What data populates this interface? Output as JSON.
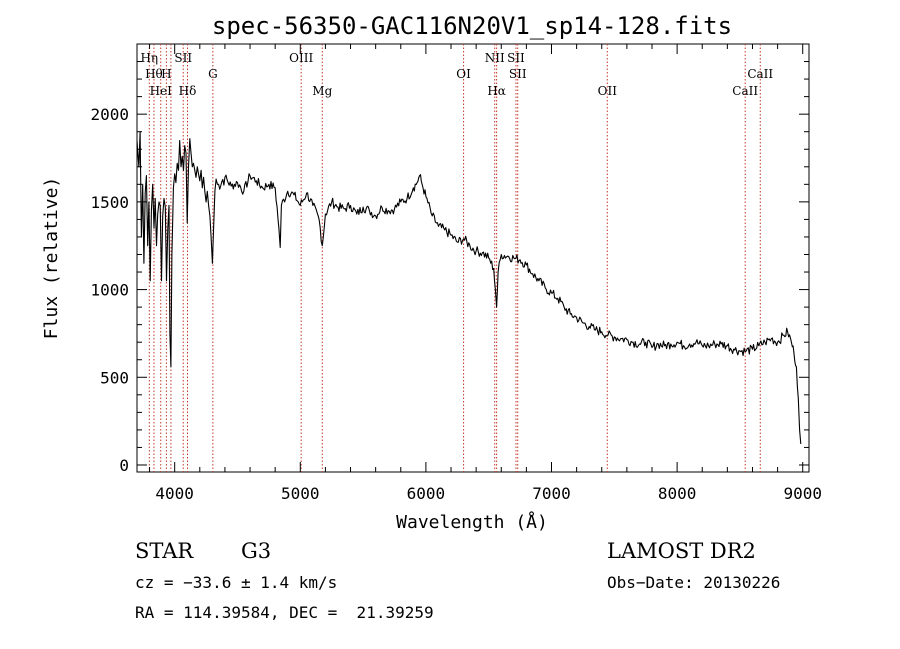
{
  "chart_data": {
    "type": "line",
    "title": "spec-56350-GAC116N20V1_sp14-128.fits",
    "xlabel": "Wavelength (Å)",
    "ylabel": "Flux (relative)",
    "xlim": [
      3700,
      9050
    ],
    "ylim": [
      -40,
      2400
    ],
    "x_ticks": [
      4000,
      5000,
      6000,
      7000,
      8000,
      9000
    ],
    "y_ticks": [
      0,
      500,
      1000,
      1500,
      2000
    ],
    "grid": false,
    "series": [
      {
        "points": [
          [
            3700,
            1850
          ],
          [
            3715,
            1700
          ],
          [
            3725,
            1900
          ],
          [
            3735,
            1300
          ],
          [
            3745,
            1600
          ],
          [
            3755,
            1150
          ],
          [
            3765,
            1550
          ],
          [
            3775,
            1650
          ],
          [
            3785,
            1250
          ],
          [
            3795,
            1500
          ],
          [
            3805,
            1050
          ],
          [
            3815,
            1450
          ],
          [
            3825,
            1600
          ],
          [
            3835,
            1350
          ],
          [
            3845,
            1520
          ],
          [
            3855,
            1250
          ],
          [
            3865,
            1430
          ],
          [
            3875,
            1500
          ],
          [
            3885,
            1480
          ],
          [
            3895,
            1050
          ],
          [
            3905,
            1420
          ],
          [
            3915,
            1520
          ],
          [
            3925,
            1470
          ],
          [
            3935,
            1050
          ],
          [
            3945,
            1350
          ],
          [
            3955,
            1480
          ],
          [
            3962,
            750
          ],
          [
            3970,
            560
          ],
          [
            3978,
            1200
          ],
          [
            3990,
            1580
          ],
          [
            4000,
            1660
          ],
          [
            4010,
            1610
          ],
          [
            4020,
            1720
          ],
          [
            4030,
            1680
          ],
          [
            4040,
            1850
          ],
          [
            4050,
            1700
          ],
          [
            4060,
            1760
          ],
          [
            4070,
            1680
          ],
          [
            4080,
            1820
          ],
          [
            4090,
            1780
          ],
          [
            4100,
            1380
          ],
          [
            4110,
            1700
          ],
          [
            4120,
            1860
          ],
          [
            4130,
            1780
          ],
          [
            4140,
            1700
          ],
          [
            4150,
            1720
          ],
          [
            4160,
            1680
          ],
          [
            4170,
            1640
          ],
          [
            4180,
            1700
          ],
          [
            4190,
            1660
          ],
          [
            4200,
            1620
          ],
          [
            4210,
            1680
          ],
          [
            4220,
            1580
          ],
          [
            4230,
            1640
          ],
          [
            4240,
            1560
          ],
          [
            4250,
            1500
          ],
          [
            4260,
            1560
          ],
          [
            4270,
            1480
          ],
          [
            4280,
            1420
          ],
          [
            4290,
            1300
          ],
          [
            4300,
            1150
          ],
          [
            4310,
            1350
          ],
          [
            4320,
            1560
          ],
          [
            4330,
            1630
          ],
          [
            4340,
            1600
          ],
          [
            4350,
            1600
          ],
          [
            4400,
            1640
          ],
          [
            4450,
            1590
          ],
          [
            4500,
            1610
          ],
          [
            4550,
            1560
          ],
          [
            4600,
            1650
          ],
          [
            4650,
            1620
          ],
          [
            4700,
            1580
          ],
          [
            4750,
            1600
          ],
          [
            4800,
            1580
          ],
          [
            4830,
            1350
          ],
          [
            4840,
            1240
          ],
          [
            4850,
            1480
          ],
          [
            4900,
            1560
          ],
          [
            4950,
            1540
          ],
          [
            5000,
            1480
          ],
          [
            5050,
            1550
          ],
          [
            5100,
            1480
          ],
          [
            5150,
            1400
          ],
          [
            5175,
            1250
          ],
          [
            5200,
            1430
          ],
          [
            5250,
            1500
          ],
          [
            5300,
            1470
          ],
          [
            5350,
            1460
          ],
          [
            5400,
            1480
          ],
          [
            5450,
            1430
          ],
          [
            5500,
            1470
          ],
          [
            5550,
            1450
          ],
          [
            5600,
            1420
          ],
          [
            5650,
            1470
          ],
          [
            5700,
            1450
          ],
          [
            5750,
            1460
          ],
          [
            5800,
            1500
          ],
          [
            5850,
            1520
          ],
          [
            5900,
            1580
          ],
          [
            5930,
            1610
          ],
          [
            5950,
            1650
          ],
          [
            5970,
            1600
          ],
          [
            6000,
            1530
          ],
          [
            6050,
            1420
          ],
          [
            6100,
            1360
          ],
          [
            6150,
            1340
          ],
          [
            6200,
            1310
          ],
          [
            6250,
            1270
          ],
          [
            6300,
            1290
          ],
          [
            6350,
            1250
          ],
          [
            6400,
            1220
          ],
          [
            6450,
            1210
          ],
          [
            6500,
            1180
          ],
          [
            6540,
            1120
          ],
          [
            6553,
            1000
          ],
          [
            6563,
            900
          ],
          [
            6575,
            1100
          ],
          [
            6600,
            1200
          ],
          [
            6650,
            1190
          ],
          [
            6700,
            1180
          ],
          [
            6750,
            1170
          ],
          [
            6800,
            1140
          ],
          [
            6850,
            1090
          ],
          [
            6900,
            1050
          ],
          [
            6950,
            1010
          ],
          [
            7000,
            980
          ],
          [
            7050,
            950
          ],
          [
            7100,
            900
          ],
          [
            7150,
            860
          ],
          [
            7200,
            840
          ],
          [
            7250,
            810
          ],
          [
            7300,
            790
          ],
          [
            7350,
            770
          ],
          [
            7400,
            760
          ],
          [
            7450,
            740
          ],
          [
            7500,
            730
          ],
          [
            7550,
            720
          ],
          [
            7600,
            715
          ],
          [
            7650,
            700
          ],
          [
            7700,
            690
          ],
          [
            7750,
            700
          ],
          [
            7800,
            670
          ],
          [
            7850,
            690
          ],
          [
            7900,
            680
          ],
          [
            7950,
            690
          ],
          [
            8000,
            700
          ],
          [
            8050,
            680
          ],
          [
            8100,
            690
          ],
          [
            8150,
            700
          ],
          [
            8200,
            680
          ],
          [
            8250,
            680
          ],
          [
            8300,
            690
          ],
          [
            8350,
            690
          ],
          [
            8400,
            680
          ],
          [
            8450,
            660
          ],
          [
            8500,
            650
          ],
          [
            8550,
            650
          ],
          [
            8600,
            660
          ],
          [
            8650,
            680
          ],
          [
            8700,
            700
          ],
          [
            8750,
            720
          ],
          [
            8800,
            700
          ],
          [
            8850,
            740
          ],
          [
            8880,
            760
          ],
          [
            8910,
            700
          ],
          [
            8930,
            640
          ],
          [
            8950,
            560
          ],
          [
            8965,
            380
          ],
          [
            8975,
            200
          ],
          [
            8985,
            120
          ]
        ]
      }
    ],
    "lines": [
      {
        "wavelength": 3798,
        "label": "Hη",
        "row": 1
      },
      {
        "wavelength": 3835,
        "label": "Hθ",
        "row": 2
      },
      {
        "wavelength": 3889,
        "label": "HeI",
        "row": 3
      },
      {
        "wavelength": 3934,
        "label": "H",
        "row": 2
      },
      {
        "wavelength": 3970,
        "label": "",
        "row": 0
      },
      {
        "wavelength": 4068,
        "label": "SII",
        "row": 1
      },
      {
        "wavelength": 4102,
        "label": "Hδ",
        "row": 3
      },
      {
        "wavelength": 4304,
        "label": "G",
        "row": 2
      },
      {
        "wavelength": 5007,
        "label": "OIII",
        "row": 1
      },
      {
        "wavelength": 5175,
        "label": "Mg",
        "row": 3
      },
      {
        "wavelength": 6300,
        "label": "OI",
        "row": 2
      },
      {
        "wavelength": 6548,
        "label": "NII",
        "row": 1
      },
      {
        "wavelength": 6563,
        "label": "Hα",
        "row": 3
      },
      {
        "wavelength": 6717,
        "label": "SII",
        "row": 1
      },
      {
        "wavelength": 6731,
        "label": "SII",
        "row": 2
      },
      {
        "wavelength": 7444,
        "label": "OII",
        "row": 3
      },
      {
        "wavelength": 8542,
        "label": "CaII",
        "row": 3
      },
      {
        "wavelength": 8662,
        "label": "CaII",
        "row": 2
      }
    ]
  },
  "info": {
    "class": "STAR",
    "subclass": "G3",
    "survey": "LAMOST DR2",
    "cz": "cz = −33.6 ± 1.4 km/s",
    "obs_date": "Obs−Date: 20130226",
    "coords": "RA = 114.39584, DEC =  21.39259"
  }
}
